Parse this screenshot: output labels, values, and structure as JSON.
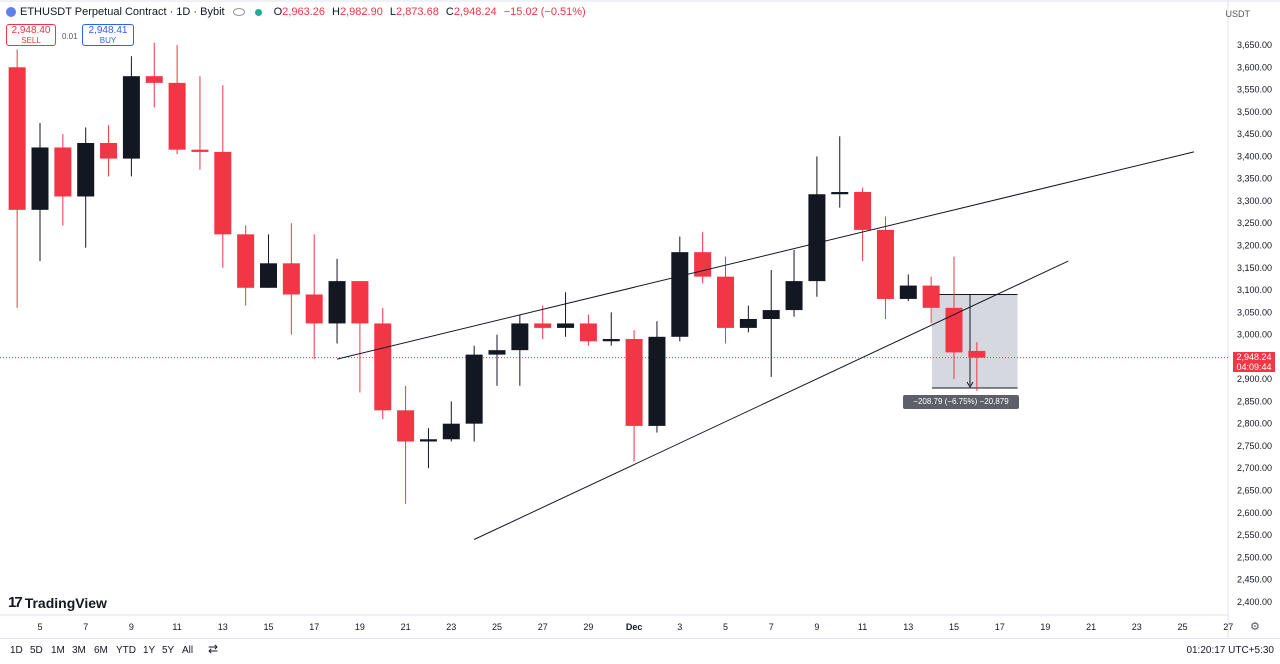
{
  "header": {
    "symbol": "ETHUSDT Perpetual Contract · 1D · Bybit",
    "ohlc": [
      {
        "key": "O",
        "value": "2,963.26"
      },
      {
        "key": "H",
        "value": "2,982.90"
      },
      {
        "key": "L",
        "value": "2,873.68"
      },
      {
        "key": "C",
        "value": "2,948.24"
      }
    ],
    "change": "−15.02 (−0.51%)"
  },
  "trade": {
    "sell_price": "2,948.40",
    "sell_label": "SELL",
    "buy_price": "2,948.41",
    "buy_label": "BUY",
    "spread": "0.01"
  },
  "currency": "USDT",
  "price_tag": {
    "price": "2,948.24",
    "countdown": "04:09:44"
  },
  "measure_label": "−208.79 (−6.75%) −20,879",
  "branding": "TradingView",
  "bottombar": {
    "ranges": [
      "1D",
      "5D",
      "1M",
      "3M",
      "6M",
      "YTD",
      "1Y",
      "5Y",
      "All"
    ],
    "clock": "01:20:17 UTC+5:30"
  },
  "colors": {
    "up": "#131722",
    "down": "#f23645",
    "trendline": "#131722",
    "measure_fill": "#d1d4dc"
  },
  "chart_data": {
    "type": "candlestick",
    "y_ticks": [
      "3,650.00",
      "3,600.00",
      "3,550.00",
      "3,500.00",
      "3,450.00",
      "3,400.00",
      "3,350.00",
      "3,300.00",
      "3,250.00",
      "3,200.00",
      "3,150.00",
      "3,100.00",
      "3,050.00",
      "3,000.00",
      "2,950.00",
      "2,900.00",
      "2,850.00",
      "2,800.00",
      "2,750.00",
      "2,700.00",
      "2,650.00",
      "2,600.00",
      "2,550.00",
      "2,500.00",
      "2,450.00",
      "2,400.00"
    ],
    "y_tick_values": [
      3650,
      3600,
      3550,
      3500,
      3450,
      3400,
      3350,
      3300,
      3250,
      3200,
      3150,
      3100,
      3050,
      3000,
      2950,
      2900,
      2850,
      2800,
      2750,
      2700,
      2650,
      2600,
      2550,
      2500,
      2450,
      2400
    ],
    "x_ticks": [
      {
        "label": "5",
        "day": 5
      },
      {
        "label": "7",
        "day": 7
      },
      {
        "label": "9",
        "day": 9
      },
      {
        "label": "11",
        "day": 11
      },
      {
        "label": "13",
        "day": 13
      },
      {
        "label": "15",
        "day": 15
      },
      {
        "label": "17",
        "day": 17
      },
      {
        "label": "19",
        "day": 19
      },
      {
        "label": "21",
        "day": 21
      },
      {
        "label": "23",
        "day": 23
      },
      {
        "label": "25",
        "day": 25
      },
      {
        "label": "27",
        "day": 27
      },
      {
        "label": "29",
        "day": 29
      },
      {
        "label": "Dec",
        "day": 31
      },
      {
        "label": "3",
        "day": 33
      },
      {
        "label": "5",
        "day": 35
      },
      {
        "label": "7",
        "day": 37
      },
      {
        "label": "9",
        "day": 39
      },
      {
        "label": "11",
        "day": 41
      },
      {
        "label": "13",
        "day": 43
      },
      {
        "label": "15",
        "day": 45
      },
      {
        "label": "17",
        "day": 47
      },
      {
        "label": "19",
        "day": 49
      },
      {
        "label": "21",
        "day": 51
      },
      {
        "label": "23",
        "day": 53
      },
      {
        "label": "25",
        "day": 55
      },
      {
        "label": "27",
        "day": 57
      }
    ],
    "candles": [
      {
        "d": 4,
        "o": 3600,
        "h": 3640,
        "l": 3060,
        "c": 3280
      },
      {
        "d": 5,
        "o": 3280,
        "h": 3475,
        "l": 3165,
        "c": 3420
      },
      {
        "d": 6,
        "o": 3420,
        "h": 3450,
        "l": 3245,
        "c": 3310
      },
      {
        "d": 7,
        "o": 3310,
        "h": 3465,
        "l": 3195,
        "c": 3430
      },
      {
        "d": 8,
        "o": 3430,
        "h": 3470,
        "l": 3355,
        "c": 3395
      },
      {
        "d": 9,
        "o": 3395,
        "h": 3625,
        "l": 3355,
        "c": 3580
      },
      {
        "d": 10,
        "o": 3580,
        "h": 3655,
        "l": 3510,
        "c": 3565
      },
      {
        "d": 11,
        "o": 3565,
        "h": 3650,
        "l": 3405,
        "c": 3415
      },
      {
        "d": 12,
        "o": 3415,
        "h": 3580,
        "l": 3370,
        "c": 3410
      },
      {
        "d": 13,
        "o": 3410,
        "h": 3560,
        "l": 3150,
        "c": 3225
      },
      {
        "d": 14,
        "o": 3225,
        "h": 3245,
        "l": 3065,
        "c": 3105
      },
      {
        "d": 15,
        "o": 3105,
        "h": 3225,
        "l": 3105,
        "c": 3160
      },
      {
        "d": 16,
        "o": 3160,
        "h": 3250,
        "l": 3000,
        "c": 3090
      },
      {
        "d": 17,
        "o": 3090,
        "h": 3225,
        "l": 2945,
        "c": 3025
      },
      {
        "d": 18,
        "o": 3025,
        "h": 3170,
        "l": 2980,
        "c": 3120
      },
      {
        "d": 19,
        "o": 3120,
        "h": 3120,
        "l": 2870,
        "c": 3025
      },
      {
        "d": 20,
        "o": 3025,
        "h": 3060,
        "l": 2810,
        "c": 2830
      },
      {
        "d": 21,
        "o": 2830,
        "h": 2885,
        "l": 2620,
        "c": 2760
      },
      {
        "d": 22,
        "o": 2760,
        "h": 2790,
        "l": 2700,
        "c": 2765
      },
      {
        "d": 23,
        "o": 2765,
        "h": 2850,
        "l": 2760,
        "c": 2800
      },
      {
        "d": 24,
        "o": 2800,
        "h": 2975,
        "l": 2760,
        "c": 2955
      },
      {
        "d": 25,
        "o": 2955,
        "h": 3000,
        "l": 2885,
        "c": 2965
      },
      {
        "d": 26,
        "o": 2965,
        "h": 3045,
        "l": 2885,
        "c": 3025
      },
      {
        "d": 27,
        "o": 3025,
        "h": 3065,
        "l": 2990,
        "c": 3015
      },
      {
        "d": 28,
        "o": 3015,
        "h": 3095,
        "l": 2995,
        "c": 3025
      },
      {
        "d": 29,
        "o": 3025,
        "h": 3045,
        "l": 2975,
        "c": 2985
      },
      {
        "d": 30,
        "o": 2985,
        "h": 3050,
        "l": 2975,
        "c": 2990
      },
      {
        "d": 31,
        "o": 2990,
        "h": 3010,
        "l": 2715,
        "c": 2795
      },
      {
        "d": 32,
        "o": 2795,
        "h": 3030,
        "l": 2780,
        "c": 2995
      },
      {
        "d": 33,
        "o": 2995,
        "h": 3220,
        "l": 2985,
        "c": 3185
      },
      {
        "d": 34,
        "o": 3185,
        "h": 3230,
        "l": 3115,
        "c": 3130
      },
      {
        "d": 35,
        "o": 3130,
        "h": 3175,
        "l": 2980,
        "c": 3015
      },
      {
        "d": 36,
        "o": 3015,
        "h": 3065,
        "l": 3005,
        "c": 3035
      },
      {
        "d": 37,
        "o": 3035,
        "h": 3145,
        "l": 2905,
        "c": 3055
      },
      {
        "d": 38,
        "o": 3055,
        "h": 3190,
        "l": 3040,
        "c": 3120
      },
      {
        "d": 39,
        "o": 3120,
        "h": 3400,
        "l": 3085,
        "c": 3315
      },
      {
        "d": 40,
        "o": 3315,
        "h": 3445,
        "l": 3285,
        "c": 3320
      },
      {
        "d": 41,
        "o": 3320,
        "h": 3330,
        "l": 3165,
        "c": 3235
      },
      {
        "d": 42,
        "o": 3235,
        "h": 3265,
        "l": 3035,
        "c": 3080
      },
      {
        "d": 43,
        "o": 3080,
        "h": 3135,
        "l": 3075,
        "c": 3110
      },
      {
        "d": 44,
        "o": 3110,
        "h": 3130,
        "l": 3025,
        "c": 3060
      },
      {
        "d": 45,
        "o": 3060,
        "h": 3175,
        "l": 2900,
        "c": 2960
      },
      {
        "d": 46,
        "o": 2963.26,
        "h": 2982.9,
        "l": 2873.68,
        "c": 2948.24
      }
    ],
    "trendlines": [
      {
        "d1": 18,
        "p1": 2945,
        "d2": 55.5,
        "p2": 3410
      },
      {
        "d1": 24,
        "p1": 2540,
        "d2": 50,
        "p2": 3165
      }
    ],
    "measure": {
      "d1": 45,
      "d2": 48,
      "p_top": 3090,
      "p_bottom": 2880
    }
  }
}
